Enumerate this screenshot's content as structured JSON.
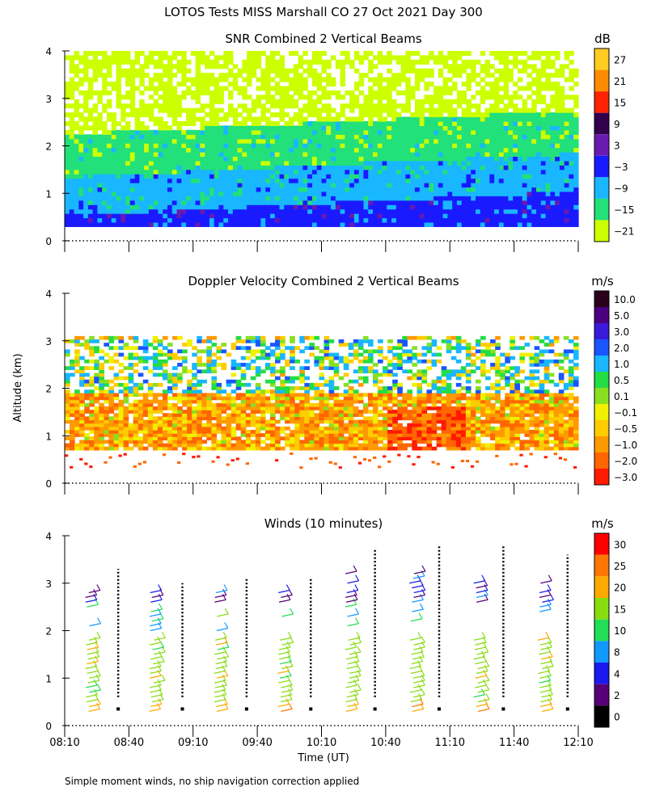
{
  "figure_title": "LOTOS Tests MISS Marshall CO  27 Oct 2021 Day 300",
  "y_axis_label": "Altitude (km)",
  "x_axis_label": "Time (UT)",
  "footnote": "Simple moment winds, no ship navigation correction applied",
  "x_ticks": [
    "08:10",
    "08:40",
    "09:10",
    "09:40",
    "10:10",
    "10:40",
    "11:10",
    "11:40",
    "12:10"
  ],
  "y_ticks": [
    "0",
    "1",
    "2",
    "3",
    "4"
  ],
  "chart_data": [
    {
      "type": "heatmap",
      "title": "SNR Combined 2 Vertical Beams",
      "unit": "dB",
      "ylim": [
        0,
        4
      ],
      "x_range": [
        "08:10",
        "12:10"
      ],
      "colorbar_labels": [
        "27",
        "21",
        "15",
        "9",
        "3",
        "−3",
        "−9",
        "−15",
        "−21"
      ],
      "colorbar_colors": [
        "#ffcc22",
        "#ff8c00",
        "#ff2200",
        "#33004d",
        "#6a1ab0",
        "#1a1aff",
        "#19b7ff",
        "#22e07a",
        "#ccff00"
      ],
      "bands": [
        {
          "km_low": 0.3,
          "km_high": 0.5,
          "level_db": -3
        },
        {
          "km_low": 0.5,
          "km_high": 1.3,
          "level_db": -9
        },
        {
          "km_low": 1.3,
          "km_high": 2.2,
          "level_db": -15
        },
        {
          "km_low": 2.2,
          "km_high": 4.0,
          "level_db": -21
        }
      ]
    },
    {
      "type": "heatmap",
      "title": "Doppler Velocity Combined 2 Vertical Beams",
      "unit": "m/s",
      "ylim": [
        0,
        4
      ],
      "x_range": [
        "08:10",
        "12:10"
      ],
      "colorbar_labels": [
        "10.0",
        "5.0",
        "3.0",
        "2.0",
        "1.0",
        "0.5",
        "0.1",
        "−0.1",
        "−0.5",
        "−1.0",
        "−2.0",
        "−3.0"
      ],
      "colorbar_colors": [
        "#2a001a",
        "#4a0080",
        "#3a1ad8",
        "#1a55ff",
        "#19b7ff",
        "#22dd44",
        "#88e020",
        "#f0f000",
        "#ffcc00",
        "#ff9900",
        "#ff6600",
        "#ff1a00"
      ],
      "bands": [
        {
          "km_low": 0.7,
          "km_high": 1.9,
          "velocity_ms": -1.0
        },
        {
          "km_low": 1.9,
          "km_high": 3.0,
          "velocity_ms": 0.5
        }
      ]
    },
    {
      "type": "barbs",
      "title": "Winds (10 minutes)",
      "unit": "m/s",
      "ylim": [
        0,
        4
      ],
      "x_range": [
        "08:10",
        "12:10"
      ],
      "colorbar_labels": [
        "30",
        "25",
        "20",
        "15",
        "10",
        "8",
        "4",
        "2",
        "0"
      ],
      "colorbar_colors": [
        "#ff0000",
        "#ff7700",
        "#ffaa00",
        "#88dd11",
        "#22dd55",
        "#1199ff",
        "#1a1aee",
        "#550077",
        "#000000"
      ],
      "profiles": [
        {
          "time": "08:35",
          "max_km": 3.3,
          "marker_km": 0.6
        },
        {
          "time": "09:05",
          "max_km": 3.0,
          "marker_km": 0.6
        },
        {
          "time": "09:35",
          "max_km": 3.1,
          "marker_km": 0.6
        },
        {
          "time": "10:05",
          "max_km": 3.1,
          "marker_km": 0.6
        },
        {
          "time": "10:35",
          "max_km": 3.7,
          "marker_km": 0.6
        },
        {
          "time": "11:05",
          "max_km": 3.8,
          "marker_km": 0.6
        },
        {
          "time": "11:35",
          "max_km": 3.8,
          "marker_km": 0.6
        },
        {
          "time": "12:05",
          "max_km": 3.6,
          "marker_km": 0.6
        }
      ]
    }
  ]
}
